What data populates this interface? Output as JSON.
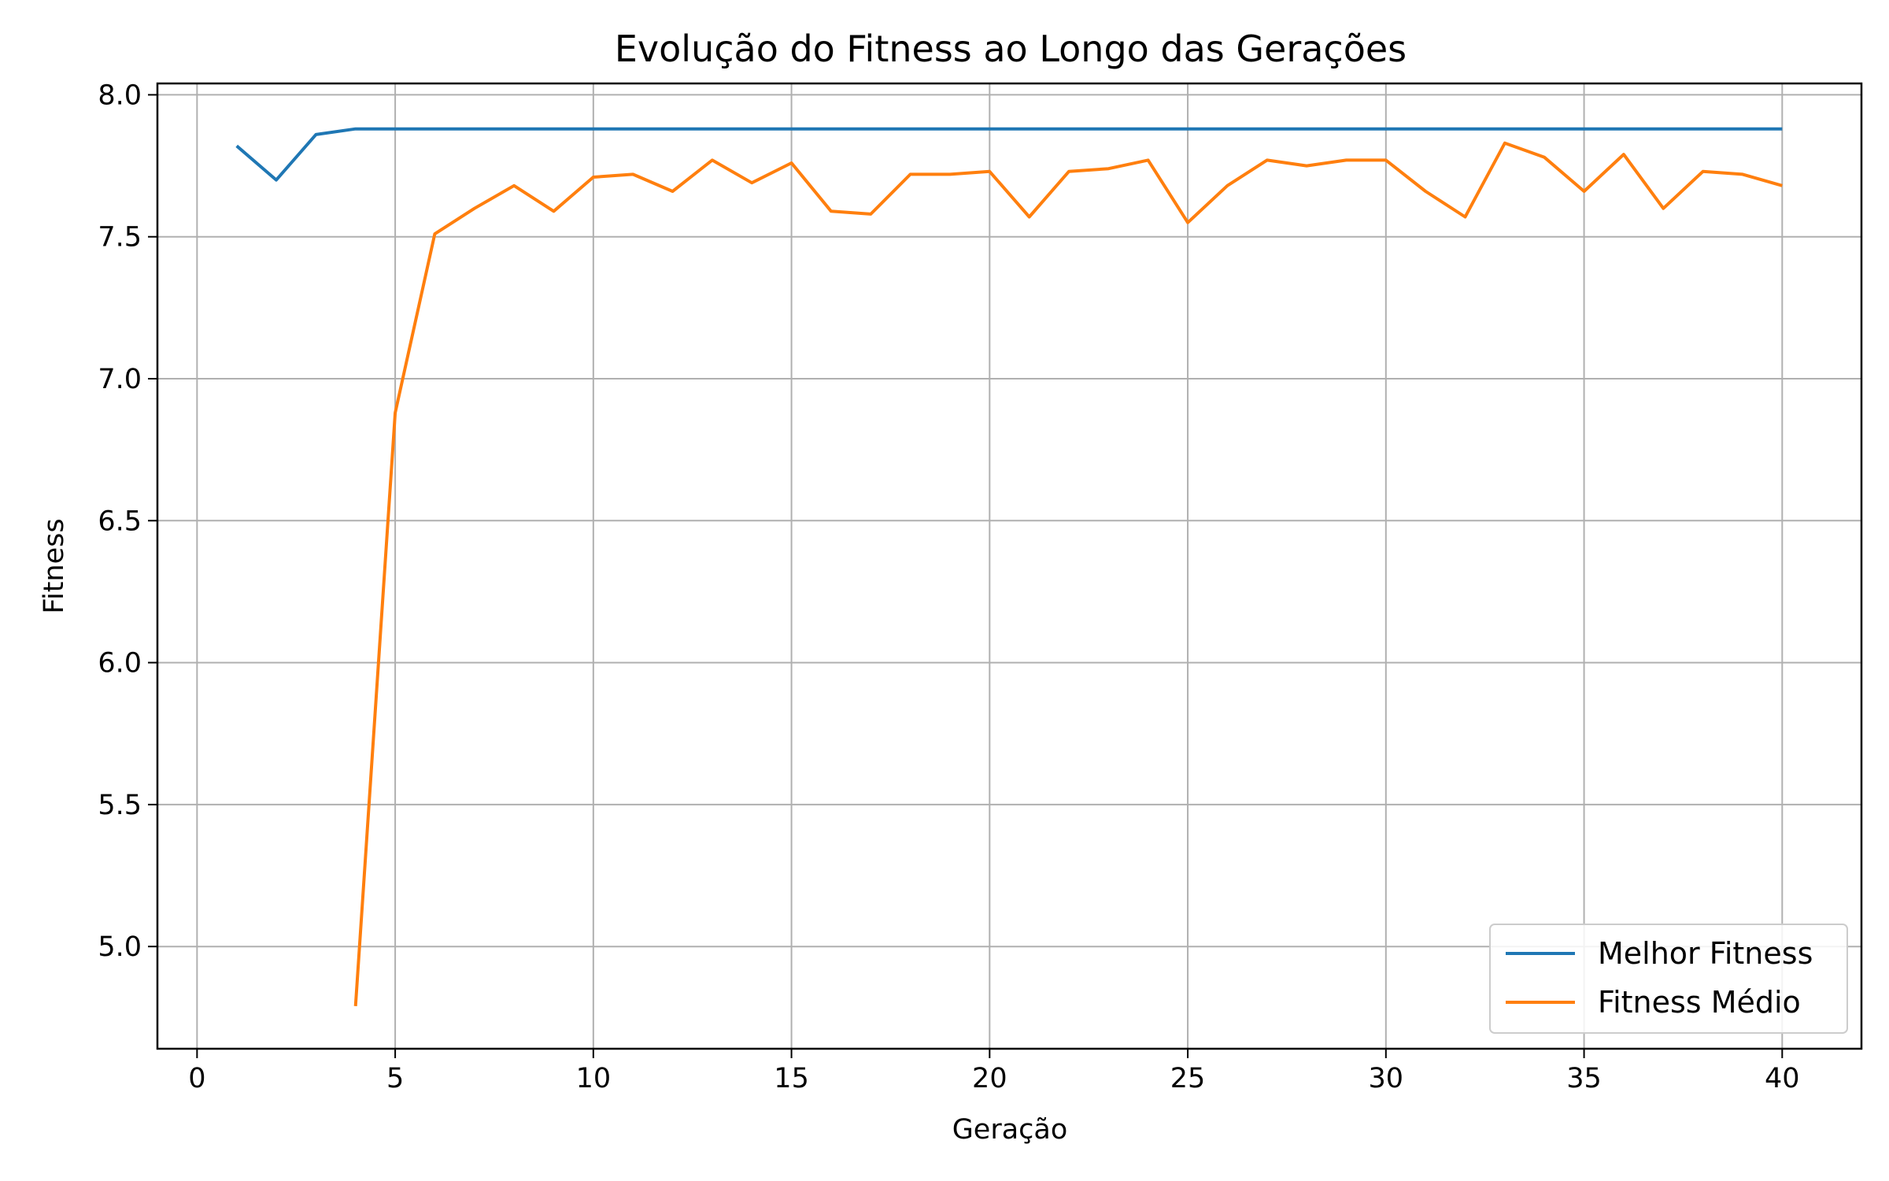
{
  "chart_data": {
    "type": "line",
    "title": "Evolução do Fitness ao Longo das Gerações",
    "xlabel": "Geração",
    "ylabel": "Fitness",
    "xlim": [
      -1,
      42
    ],
    "ylim": [
      4.64,
      8.04
    ],
    "xticks": [
      0,
      5,
      10,
      15,
      20,
      25,
      30,
      35,
      40
    ],
    "yticks": [
      5.0,
      5.5,
      6.0,
      6.5,
      7.0,
      7.5,
      8.0
    ],
    "xtick_labels": [
      "0",
      "5",
      "10",
      "15",
      "20",
      "25",
      "30",
      "35",
      "40"
    ],
    "ytick_labels": [
      "5.0",
      "5.5",
      "6.0",
      "6.5",
      "7.0",
      "7.5",
      "8.0"
    ],
    "grid": true,
    "legend_position": "bottom-right",
    "series": [
      {
        "name": "Melhor Fitness",
        "color": "#1f77b4",
        "x": [
          1,
          2,
          3,
          4,
          5,
          6,
          7,
          8,
          9,
          10,
          11,
          12,
          13,
          14,
          15,
          16,
          17,
          18,
          19,
          20,
          21,
          22,
          23,
          24,
          25,
          26,
          27,
          28,
          29,
          30,
          31,
          32,
          33,
          34,
          35,
          36,
          37,
          38,
          39,
          40
        ],
        "values": [
          7.82,
          7.7,
          7.86,
          7.88,
          7.88,
          7.88,
          7.88,
          7.88,
          7.88,
          7.88,
          7.88,
          7.88,
          7.88,
          7.88,
          7.88,
          7.88,
          7.88,
          7.88,
          7.88,
          7.88,
          7.88,
          7.88,
          7.88,
          7.88,
          7.88,
          7.88,
          7.88,
          7.88,
          7.88,
          7.88,
          7.88,
          7.88,
          7.88,
          7.88,
          7.88,
          7.88,
          7.88,
          7.88,
          7.88,
          7.88
        ]
      },
      {
        "name": "Fitness Médio",
        "color": "#ff7f0e",
        "x": [
          4,
          5,
          6,
          7,
          8,
          9,
          10,
          11,
          12,
          13,
          14,
          15,
          16,
          17,
          18,
          19,
          20,
          21,
          22,
          23,
          24,
          25,
          26,
          27,
          28,
          29,
          30,
          31,
          32,
          33,
          34,
          35,
          36,
          37,
          38,
          39,
          40
        ],
        "values": [
          4.79,
          6.88,
          7.51,
          7.6,
          7.68,
          7.59,
          7.71,
          7.72,
          7.66,
          7.77,
          7.69,
          7.76,
          7.59,
          7.58,
          7.72,
          7.72,
          7.73,
          7.57,
          7.73,
          7.74,
          7.77,
          7.55,
          7.68,
          7.77,
          7.75,
          7.77,
          7.77,
          7.66,
          7.57,
          7.83,
          7.78,
          7.66,
          7.79,
          7.6,
          7.73,
          7.72,
          7.68
        ]
      }
    ]
  }
}
